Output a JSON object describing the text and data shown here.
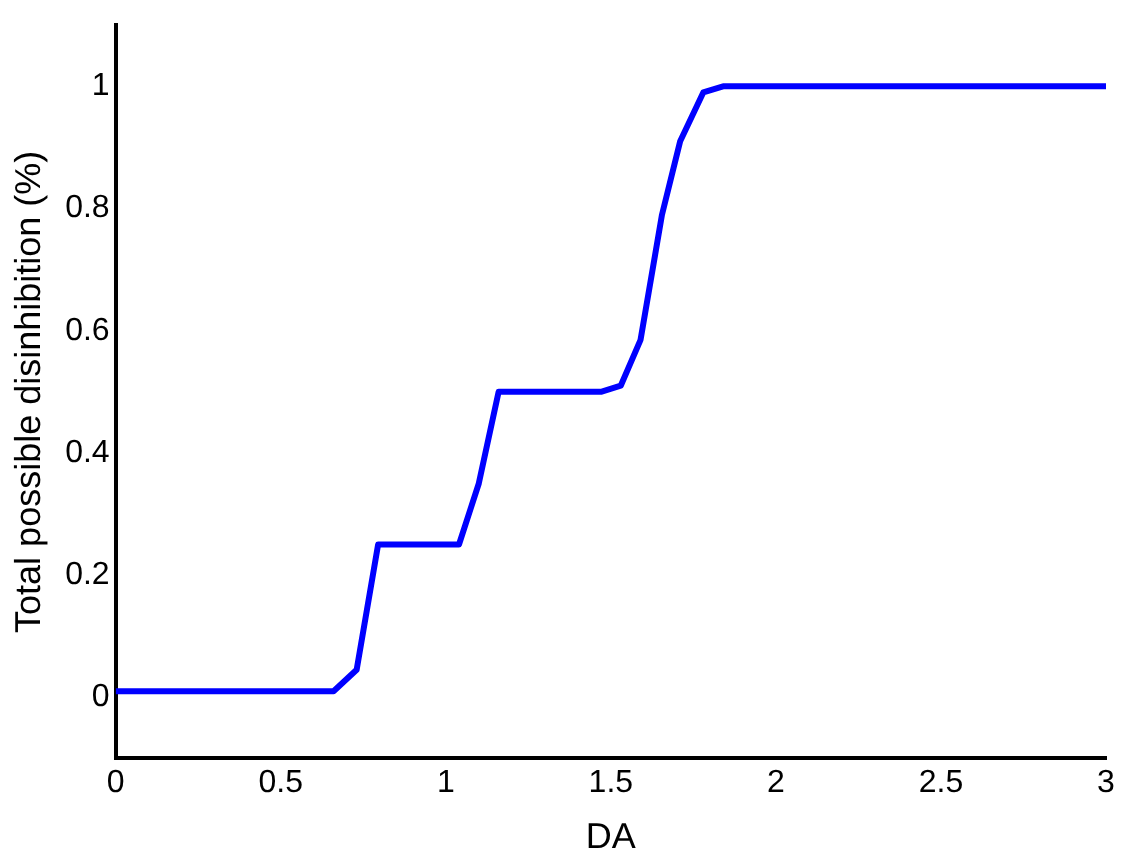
{
  "chart_data": {
    "type": "line",
    "xlabel": "DA",
    "ylabel": "Total possible disinhibition (%)",
    "series": [
      {
        "color": "#0000ff",
        "x": [
          0,
          0.66,
          0.73,
          0.795,
          1.04,
          1.1,
          1.16,
          1.47,
          1.53,
          1.59,
          1.655,
          1.71,
          1.78,
          1.84,
          3
        ],
        "values": [
          0.01,
          0.01,
          0.045,
          0.25,
          0.25,
          0.35,
          0.5,
          0.5,
          0.51,
          0.585,
          0.79,
          0.91,
          0.99,
          1,
          1
        ]
      }
    ],
    "xlim": [
      0,
      3
    ],
    "xticks": [
      0,
      0.5,
      1,
      1.5,
      2,
      2.5,
      3
    ],
    "ylim": [
      -0.1,
      1.1
    ],
    "yticks": [
      0,
      0.2,
      0.4,
      0.6,
      0.8,
      1
    ],
    "grid": false,
    "legend": false,
    "marker": "none",
    "line_style": "solid"
  }
}
